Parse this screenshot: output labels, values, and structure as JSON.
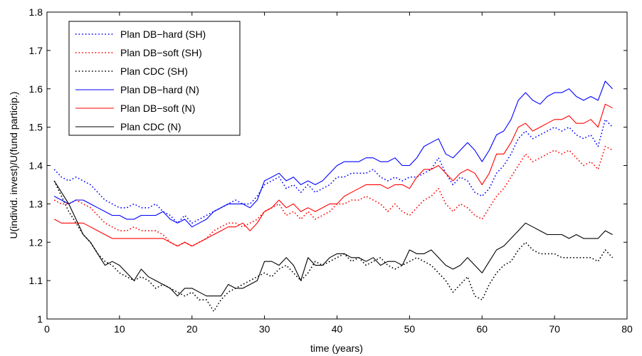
{
  "chart_data": {
    "type": "line",
    "title": "",
    "xlabel": "time (years)",
    "ylabel": "U(individ. invest)/U(fund particip.)",
    "xlim": [
      0,
      80
    ],
    "ylim": [
      1,
      1.8
    ],
    "xticks": [
      0,
      10,
      20,
      30,
      40,
      50,
      60,
      70,
      80
    ],
    "yticks": [
      1,
      1.1,
      1.2,
      1.3,
      1.4,
      1.5,
      1.6,
      1.7,
      1.8
    ],
    "xtick_labels": [
      "0",
      "10",
      "20",
      "30",
      "40",
      "50",
      "60",
      "70",
      "80"
    ],
    "ytick_labels": [
      "1",
      "1.1",
      "1.2",
      "1.3",
      "1.4",
      "1.5",
      "1.6",
      "1.7",
      "1.8"
    ],
    "grid": false,
    "legend_position": "top-left",
    "series": [
      {
        "name": "Plan DB−hard (SH)",
        "color": "#0000ff",
        "style": "dotted",
        "x": [
          1,
          2,
          3,
          4,
          5,
          6,
          7,
          8,
          9,
          10,
          11,
          12,
          13,
          14,
          15,
          16,
          17,
          18,
          19,
          20,
          21,
          22,
          23,
          24,
          25,
          26,
          27,
          28,
          29,
          30,
          31,
          32,
          33,
          34,
          35,
          36,
          37,
          38,
          39,
          40,
          41,
          42,
          43,
          44,
          45,
          46,
          47,
          48,
          49,
          50,
          51,
          52,
          53,
          54,
          55,
          56,
          57,
          58,
          59,
          60,
          61,
          62,
          63,
          64,
          65,
          66,
          67,
          68,
          69,
          70,
          71,
          72,
          73,
          74,
          75,
          76,
          77,
          78
        ],
        "y": [
          1.39,
          1.37,
          1.36,
          1.37,
          1.36,
          1.35,
          1.33,
          1.31,
          1.3,
          1.29,
          1.29,
          1.3,
          1.29,
          1.29,
          1.3,
          1.28,
          1.27,
          1.25,
          1.27,
          1.25,
          1.26,
          1.27,
          1.28,
          1.29,
          1.3,
          1.31,
          1.3,
          1.3,
          1.32,
          1.35,
          1.36,
          1.37,
          1.34,
          1.35,
          1.33,
          1.35,
          1.33,
          1.34,
          1.35,
          1.37,
          1.37,
          1.38,
          1.38,
          1.38,
          1.39,
          1.37,
          1.36,
          1.37,
          1.36,
          1.37,
          1.37,
          1.38,
          1.39,
          1.42,
          1.38,
          1.35,
          1.37,
          1.36,
          1.33,
          1.32,
          1.34,
          1.38,
          1.4,
          1.43,
          1.47,
          1.49,
          1.47,
          1.48,
          1.49,
          1.5,
          1.49,
          1.5,
          1.48,
          1.47,
          1.48,
          1.45,
          1.52,
          1.5
        ]
      },
      {
        "name": "Plan DB−soft (SH)",
        "color": "#ff0000",
        "style": "dotted",
        "x": [
          1,
          2,
          3,
          4,
          5,
          6,
          7,
          8,
          9,
          10,
          11,
          12,
          13,
          14,
          15,
          16,
          17,
          18,
          19,
          20,
          21,
          22,
          23,
          24,
          25,
          26,
          27,
          28,
          29,
          30,
          31,
          32,
          33,
          34,
          35,
          36,
          37,
          38,
          39,
          40,
          41,
          42,
          43,
          44,
          45,
          46,
          47,
          48,
          49,
          50,
          51,
          52,
          53,
          54,
          55,
          56,
          57,
          58,
          59,
          60,
          61,
          62,
          63,
          64,
          65,
          66,
          67,
          68,
          69,
          70,
          71,
          72,
          73,
          74,
          75,
          76,
          77,
          78
        ],
        "y": [
          1.31,
          1.3,
          1.3,
          1.31,
          1.3,
          1.29,
          1.27,
          1.25,
          1.24,
          1.23,
          1.23,
          1.24,
          1.23,
          1.23,
          1.23,
          1.22,
          1.2,
          1.19,
          1.2,
          1.19,
          1.2,
          1.21,
          1.23,
          1.24,
          1.25,
          1.25,
          1.24,
          1.25,
          1.26,
          1.28,
          1.29,
          1.3,
          1.27,
          1.28,
          1.26,
          1.28,
          1.26,
          1.27,
          1.28,
          1.3,
          1.3,
          1.31,
          1.31,
          1.32,
          1.31,
          1.3,
          1.28,
          1.3,
          1.28,
          1.27,
          1.29,
          1.31,
          1.32,
          1.34,
          1.3,
          1.28,
          1.3,
          1.29,
          1.27,
          1.26,
          1.29,
          1.32,
          1.34,
          1.37,
          1.4,
          1.43,
          1.41,
          1.42,
          1.43,
          1.44,
          1.43,
          1.44,
          1.42,
          1.4,
          1.41,
          1.39,
          1.45,
          1.44
        ]
      },
      {
        "name": "Plan CDC (SH)",
        "color": "#000000",
        "style": "dotted",
        "x": [
          1,
          2,
          3,
          4,
          5,
          6,
          7,
          8,
          9,
          10,
          11,
          12,
          13,
          14,
          15,
          16,
          17,
          18,
          19,
          20,
          21,
          22,
          23,
          24,
          25,
          26,
          27,
          28,
          29,
          30,
          31,
          32,
          33,
          34,
          35,
          36,
          37,
          38,
          39,
          40,
          41,
          42,
          43,
          44,
          45,
          46,
          47,
          48,
          49,
          50,
          51,
          52,
          53,
          54,
          55,
          56,
          57,
          58,
          59,
          60,
          61,
          62,
          63,
          64,
          65,
          66,
          67,
          68,
          69,
          70,
          71,
          72,
          73,
          74,
          75,
          76,
          77,
          78
        ],
        "y": [
          1.36,
          1.32,
          1.28,
          1.25,
          1.22,
          1.2,
          1.17,
          1.15,
          1.14,
          1.12,
          1.11,
          1.1,
          1.11,
          1.1,
          1.08,
          1.09,
          1.08,
          1.07,
          1.06,
          1.07,
          1.05,
          1.05,
          1.02,
          1.05,
          1.07,
          1.08,
          1.09,
          1.1,
          1.11,
          1.12,
          1.11,
          1.13,
          1.14,
          1.12,
          1.1,
          1.12,
          1.15,
          1.14,
          1.15,
          1.16,
          1.17,
          1.15,
          1.16,
          1.14,
          1.15,
          1.16,
          1.14,
          1.13,
          1.14,
          1.15,
          1.16,
          1.15,
          1.14,
          1.12,
          1.1,
          1.07,
          1.09,
          1.11,
          1.06,
          1.05,
          1.09,
          1.12,
          1.14,
          1.15,
          1.18,
          1.2,
          1.18,
          1.17,
          1.17,
          1.17,
          1.16,
          1.16,
          1.16,
          1.16,
          1.16,
          1.15,
          1.18,
          1.16
        ]
      },
      {
        "name": "Plan DB−hard (N)",
        "color": "#0000ff",
        "style": "solid",
        "x": [
          1,
          2,
          3,
          4,
          5,
          6,
          7,
          8,
          9,
          10,
          11,
          12,
          13,
          14,
          15,
          16,
          17,
          18,
          19,
          20,
          21,
          22,
          23,
          24,
          25,
          26,
          27,
          28,
          29,
          30,
          31,
          32,
          33,
          34,
          35,
          36,
          37,
          38,
          39,
          40,
          41,
          42,
          43,
          44,
          45,
          46,
          47,
          48,
          49,
          50,
          51,
          52,
          53,
          54,
          55,
          56,
          57,
          58,
          59,
          60,
          61,
          62,
          63,
          64,
          65,
          66,
          67,
          68,
          69,
          70,
          71,
          72,
          73,
          74,
          75,
          76,
          77,
          78
        ],
        "y": [
          1.32,
          1.31,
          1.3,
          1.31,
          1.31,
          1.3,
          1.29,
          1.28,
          1.27,
          1.27,
          1.26,
          1.26,
          1.27,
          1.27,
          1.27,
          1.28,
          1.26,
          1.25,
          1.26,
          1.24,
          1.25,
          1.26,
          1.28,
          1.29,
          1.3,
          1.3,
          1.3,
          1.29,
          1.31,
          1.36,
          1.37,
          1.38,
          1.36,
          1.37,
          1.35,
          1.36,
          1.35,
          1.36,
          1.38,
          1.4,
          1.41,
          1.41,
          1.41,
          1.42,
          1.42,
          1.41,
          1.41,
          1.42,
          1.4,
          1.4,
          1.42,
          1.45,
          1.46,
          1.47,
          1.43,
          1.42,
          1.44,
          1.46,
          1.44,
          1.41,
          1.44,
          1.48,
          1.49,
          1.52,
          1.57,
          1.59,
          1.57,
          1.56,
          1.58,
          1.59,
          1.59,
          1.6,
          1.58,
          1.57,
          1.58,
          1.57,
          1.62,
          1.6
        ]
      },
      {
        "name": "Plan DB−soft (N)",
        "color": "#ff0000",
        "style": "solid",
        "x": [
          1,
          2,
          3,
          4,
          5,
          6,
          7,
          8,
          9,
          10,
          11,
          12,
          13,
          14,
          15,
          16,
          17,
          18,
          19,
          20,
          21,
          22,
          23,
          24,
          25,
          26,
          27,
          28,
          29,
          30,
          31,
          32,
          33,
          34,
          35,
          36,
          37,
          38,
          39,
          40,
          41,
          42,
          43,
          44,
          45,
          46,
          47,
          48,
          49,
          50,
          51,
          52,
          53,
          54,
          55,
          56,
          57,
          58,
          59,
          60,
          61,
          62,
          63,
          64,
          65,
          66,
          67,
          68,
          69,
          70,
          71,
          72,
          73,
          74,
          75,
          76,
          77,
          78
        ],
        "y": [
          1.26,
          1.25,
          1.25,
          1.25,
          1.25,
          1.24,
          1.23,
          1.22,
          1.21,
          1.21,
          1.21,
          1.21,
          1.21,
          1.21,
          1.21,
          1.21,
          1.2,
          1.19,
          1.2,
          1.19,
          1.2,
          1.21,
          1.22,
          1.23,
          1.24,
          1.24,
          1.25,
          1.23,
          1.25,
          1.28,
          1.29,
          1.31,
          1.29,
          1.3,
          1.28,
          1.29,
          1.28,
          1.29,
          1.3,
          1.3,
          1.32,
          1.33,
          1.34,
          1.35,
          1.35,
          1.35,
          1.34,
          1.35,
          1.35,
          1.34,
          1.37,
          1.39,
          1.39,
          1.4,
          1.38,
          1.36,
          1.38,
          1.39,
          1.38,
          1.35,
          1.38,
          1.43,
          1.43,
          1.46,
          1.5,
          1.51,
          1.49,
          1.5,
          1.51,
          1.52,
          1.52,
          1.53,
          1.51,
          1.51,
          1.52,
          1.5,
          1.56,
          1.55
        ]
      },
      {
        "name": "Plan CDC (N)",
        "color": "#000000",
        "style": "solid",
        "x": [
          1,
          2,
          3,
          4,
          5,
          6,
          7,
          8,
          9,
          10,
          11,
          12,
          13,
          14,
          15,
          16,
          17,
          18,
          19,
          20,
          21,
          22,
          23,
          24,
          25,
          26,
          27,
          28,
          29,
          30,
          31,
          32,
          33,
          34,
          35,
          36,
          37,
          38,
          39,
          40,
          41,
          42,
          43,
          44,
          45,
          46,
          47,
          48,
          49,
          50,
          51,
          52,
          53,
          54,
          55,
          56,
          57,
          58,
          59,
          60,
          61,
          62,
          63,
          64,
          65,
          66,
          67,
          68,
          69,
          70,
          71,
          72,
          73,
          74,
          75,
          76,
          77,
          78
        ],
        "y": [
          1.36,
          1.33,
          1.3,
          1.26,
          1.22,
          1.2,
          1.17,
          1.14,
          1.15,
          1.14,
          1.12,
          1.1,
          1.13,
          1.11,
          1.1,
          1.09,
          1.08,
          1.06,
          1.08,
          1.08,
          1.07,
          1.06,
          1.06,
          1.06,
          1.09,
          1.08,
          1.08,
          1.09,
          1.1,
          1.15,
          1.15,
          1.14,
          1.16,
          1.14,
          1.1,
          1.16,
          1.14,
          1.14,
          1.16,
          1.17,
          1.17,
          1.16,
          1.16,
          1.15,
          1.16,
          1.14,
          1.15,
          1.15,
          1.14,
          1.18,
          1.17,
          1.17,
          1.18,
          1.16,
          1.14,
          1.13,
          1.14,
          1.16,
          1.14,
          1.12,
          1.15,
          1.18,
          1.19,
          1.21,
          1.23,
          1.25,
          1.24,
          1.23,
          1.22,
          1.22,
          1.22,
          1.21,
          1.22,
          1.21,
          1.21,
          1.21,
          1.23,
          1.22
        ]
      }
    ]
  }
}
